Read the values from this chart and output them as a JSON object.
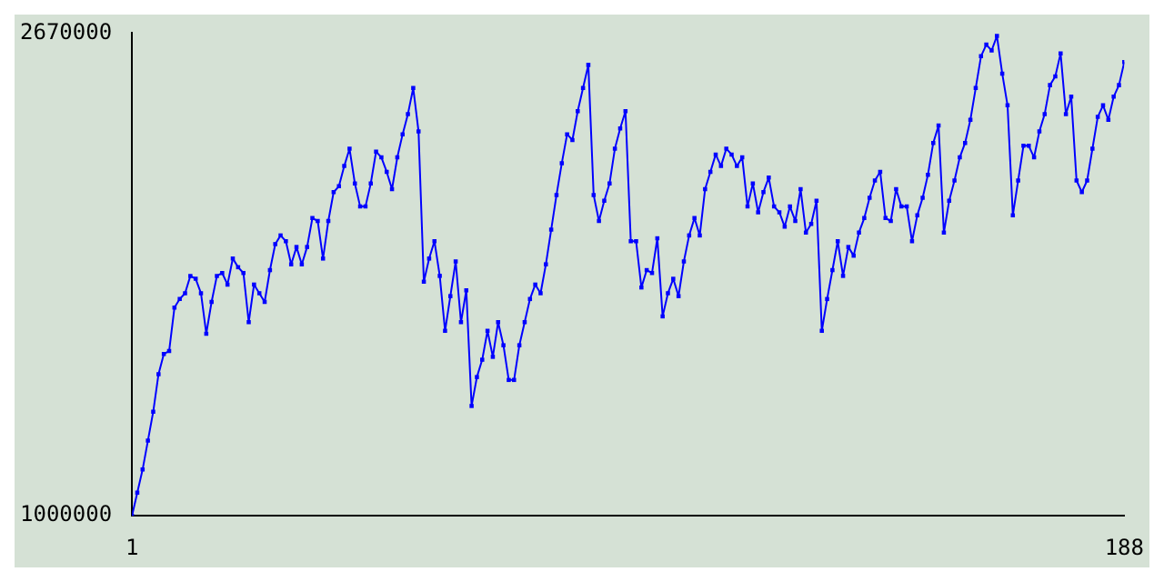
{
  "chart_data": {
    "type": "line",
    "x": [
      1,
      2,
      3,
      4,
      5,
      6,
      7,
      8,
      9,
      10,
      11,
      12,
      13,
      14,
      15,
      16,
      17,
      18,
      19,
      20,
      21,
      22,
      23,
      24,
      25,
      26,
      27,
      28,
      29,
      30,
      31,
      32,
      33,
      34,
      35,
      36,
      37,
      38,
      39,
      40,
      41,
      42,
      43,
      44,
      45,
      46,
      47,
      48,
      49,
      50,
      51,
      52,
      53,
      54,
      55,
      56,
      57,
      58,
      59,
      60,
      61,
      62,
      63,
      64,
      65,
      66,
      67,
      68,
      69,
      70,
      71,
      72,
      73,
      74,
      75,
      76,
      77,
      78,
      79,
      80,
      81,
      82,
      83,
      84,
      85,
      86,
      87,
      88,
      89,
      90,
      91,
      92,
      93,
      94,
      95,
      96,
      97,
      98,
      99,
      100,
      101,
      102,
      103,
      104,
      105,
      106,
      107,
      108,
      109,
      110,
      111,
      112,
      113,
      114,
      115,
      116,
      117,
      118,
      119,
      120,
      121,
      122,
      123,
      124,
      125,
      126,
      127,
      128,
      129,
      130,
      131,
      132,
      133,
      134,
      135,
      136,
      137,
      138,
      139,
      140,
      141,
      142,
      143,
      144,
      145,
      146,
      147,
      148,
      149,
      150,
      151,
      152,
      153,
      154,
      155,
      156,
      157,
      158,
      159,
      160,
      161,
      162,
      163,
      164,
      165,
      166,
      167,
      168,
      169,
      170,
      171,
      172,
      173,
      174,
      175,
      176,
      177,
      178,
      179,
      180,
      181,
      182,
      183,
      184,
      185,
      186,
      187,
      188
    ],
    "series": [
      {
        "color": "#0000ff",
        "values": [
          1000000,
          1080000,
          1160000,
          1260000,
          1360000,
          1490000,
          1560000,
          1570000,
          1720000,
          1750000,
          1770000,
          1830000,
          1820000,
          1770000,
          1630000,
          1740000,
          1830000,
          1840000,
          1800000,
          1890000,
          1860000,
          1840000,
          1670000,
          1800000,
          1770000,
          1740000,
          1850000,
          1940000,
          1970000,
          1950000,
          1870000,
          1930000,
          1870000,
          1930000,
          2030000,
          2020000,
          1890000,
          2020000,
          2120000,
          2140000,
          2210000,
          2270000,
          2150000,
          2070000,
          2070000,
          2150000,
          2260000,
          2240000,
          2190000,
          2130000,
          2240000,
          2320000,
          2390000,
          2480000,
          2330000,
          1810000,
          1890000,
          1950000,
          1830000,
          1640000,
          1760000,
          1880000,
          1670000,
          1780000,
          1380000,
          1480000,
          1540000,
          1640000,
          1550000,
          1670000,
          1590000,
          1470000,
          1470000,
          1590000,
          1670000,
          1750000,
          1800000,
          1770000,
          1870000,
          1990000,
          2110000,
          2220000,
          2320000,
          2300000,
          2400000,
          2480000,
          2560000,
          2110000,
          2020000,
          2090000,
          2150000,
          2270000,
          2340000,
          2400000,
          1950000,
          1950000,
          1790000,
          1850000,
          1840000,
          1960000,
          1690000,
          1770000,
          1820000,
          1760000,
          1880000,
          1970000,
          2030000,
          1970000,
          2130000,
          2190000,
          2250000,
          2210000,
          2270000,
          2250000,
          2210000,
          2240000,
          2070000,
          2150000,
          2050000,
          2120000,
          2170000,
          2070000,
          2050000,
          2000000,
          2070000,
          2020000,
          2130000,
          1980000,
          2010000,
          2090000,
          1640000,
          1750000,
          1850000,
          1950000,
          1830000,
          1930000,
          1900000,
          1980000,
          2030000,
          2100000,
          2160000,
          2190000,
          2030000,
          2020000,
          2130000,
          2070000,
          2070000,
          1950000,
          2040000,
          2100000,
          2180000,
          2290000,
          2350000,
          1980000,
          2090000,
          2160000,
          2240000,
          2290000,
          2370000,
          2480000,
          2590000,
          2630000,
          2610000,
          2660000,
          2530000,
          2420000,
          2040000,
          2160000,
          2280000,
          2280000,
          2240000,
          2330000,
          2390000,
          2490000,
          2520000,
          2600000,
          2390000,
          2450000,
          2160000,
          2120000,
          2160000,
          2270000,
          2380000,
          2420000,
          2370000,
          2450000,
          2490000,
          2570000
        ]
      }
    ],
    "xlim": [
      1,
      188
    ],
    "xticks": [
      1,
      188
    ],
    "ylim": [
      1000000,
      2670000
    ],
    "yticks": [
      1000000,
      2670000
    ],
    "grid": false,
    "legend": false,
    "marker": "square",
    "line_style": "solid"
  }
}
